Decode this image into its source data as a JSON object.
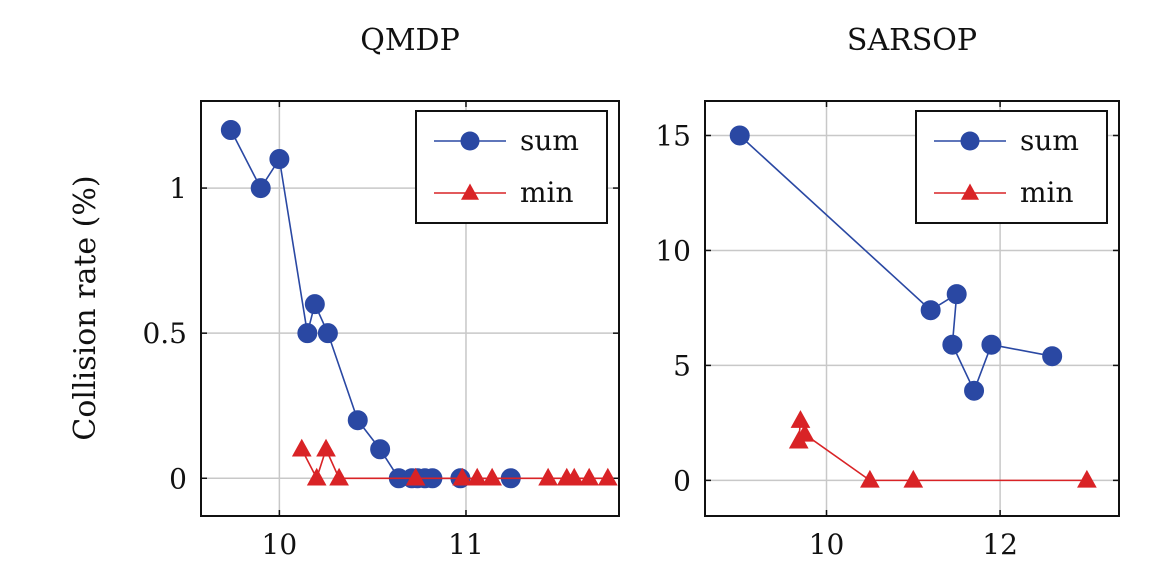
{
  "chart_data": [
    {
      "type": "line",
      "title": "QMDP",
      "ylabel": "Collision rate (%)",
      "xlim": [
        9.58,
        11.82
      ],
      "ylim": [
        -0.13,
        1.3
      ],
      "xticks": [
        "10",
        "11"
      ],
      "xtick_values": [
        10,
        11
      ],
      "yticks": [
        "0",
        "0.5",
        "1"
      ],
      "ytick_values": [
        0,
        0.5,
        1
      ],
      "grid": true,
      "legend": "top-right",
      "series": [
        {
          "name": "sum",
          "color": "#2a48a3",
          "marker": "circle",
          "points": [
            [
              9.74,
              1.2
            ],
            [
              9.9,
              1.0
            ],
            [
              10.0,
              1.1
            ],
            [
              10.15,
              0.5
            ],
            [
              10.19,
              0.6
            ],
            [
              10.26,
              0.5
            ],
            [
              10.42,
              0.2
            ],
            [
              10.54,
              0.1
            ],
            [
              10.64,
              0.0
            ],
            [
              10.71,
              0.0
            ],
            [
              10.74,
              0.0
            ],
            [
              10.78,
              0.0
            ],
            [
              10.82,
              0.0
            ],
            [
              10.97,
              0.0
            ],
            [
              11.24,
              0.0
            ]
          ]
        },
        {
          "name": "min",
          "color": "#d92326",
          "marker": "triangle",
          "points": [
            [
              10.12,
              0.1
            ],
            [
              10.2,
              0.0
            ],
            [
              10.25,
              0.1
            ],
            [
              10.32,
              0.0
            ],
            [
              10.73,
              0.0
            ],
            [
              10.98,
              0.0
            ],
            [
              11.06,
              0.0
            ],
            [
              11.14,
              0.0
            ],
            [
              11.44,
              0.0
            ],
            [
              11.54,
              0.0
            ],
            [
              11.58,
              0.0
            ],
            [
              11.66,
              0.0
            ],
            [
              11.76,
              0.0
            ]
          ]
        }
      ]
    },
    {
      "type": "line",
      "title": "SARSOP",
      "ylabel": "",
      "xlim": [
        8.6,
        13.37
      ],
      "ylim": [
        -1.55,
        16.5
      ],
      "xticks": [
        "10",
        "12"
      ],
      "xtick_values": [
        10,
        12
      ],
      "yticks": [
        "0",
        "5",
        "10",
        "15"
      ],
      "ytick_values": [
        0,
        5,
        10,
        15
      ],
      "grid": true,
      "legend": "top-right",
      "series": [
        {
          "name": "sum",
          "color": "#2a48a3",
          "marker": "circle",
          "points": [
            [
              9.0,
              15.0
            ],
            [
              11.2,
              7.4
            ],
            [
              11.5,
              8.1
            ],
            [
              11.45,
              5.9
            ],
            [
              11.7,
              3.9
            ],
            [
              11.9,
              5.9
            ],
            [
              12.6,
              5.4
            ]
          ]
        },
        {
          "name": "min",
          "color": "#d92326",
          "marker": "triangle",
          "points": [
            [
              9.7,
              2.6
            ],
            [
              9.68,
              1.7
            ],
            [
              9.75,
              2.0
            ],
            [
              10.5,
              0.0
            ],
            [
              11.0,
              0.0
            ],
            [
              13.0,
              0.0
            ]
          ]
        }
      ]
    }
  ]
}
